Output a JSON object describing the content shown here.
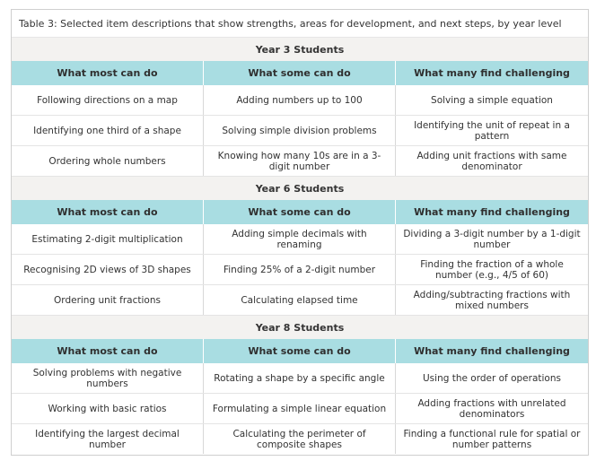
{
  "caption": "Table 3: Selected item descriptions that show strengths, areas for development, and next steps, by year level",
  "columns": [
    "What most can do",
    "What some can do",
    "What many find challenging"
  ],
  "sections": [
    {
      "title": "Year 3 Students",
      "rows": [
        [
          "Following directions on a map",
          "Adding numbers up to 100",
          "Solving a simple equation"
        ],
        [
          "Identifying one third of a shape",
          "Solving simple division problems",
          "Identifying the unit of repeat in a pattern"
        ],
        [
          "Ordering whole numbers",
          "Knowing how many 10s are in a 3-digit number",
          "Adding unit fractions with same denominator"
        ]
      ]
    },
    {
      "title": "Year 6 Students",
      "rows": [
        [
          "Estimating 2-digit multiplication",
          "Adding simple decimals with renaming",
          "Dividing a 3-digit number by a 1-digit number"
        ],
        [
          "Recognising 2D views of 3D shapes",
          "Finding 25% of a 2-digit number",
          "Finding the fraction of a whole number (e.g., 4/5 of 60)"
        ],
        [
          "Ordering unit fractions",
          "Calculating elapsed time",
          "Adding/subtracting fractions with mixed numbers"
        ]
      ]
    },
    {
      "title": "Year 8 Students",
      "rows": [
        [
          "Solving problems with negative numbers",
          "Rotating a shape by a specific angle",
          "Using the order of operations"
        ],
        [
          "Working with basic ratios",
          "Formulating a simple linear equation",
          "Adding fractions with unrelated denominators"
        ],
        [
          "Identifying the largest decimal number",
          "Calculating the perimeter of composite shapes",
          "Finding a functional rule for spatial or number patterns"
        ]
      ]
    }
  ]
}
